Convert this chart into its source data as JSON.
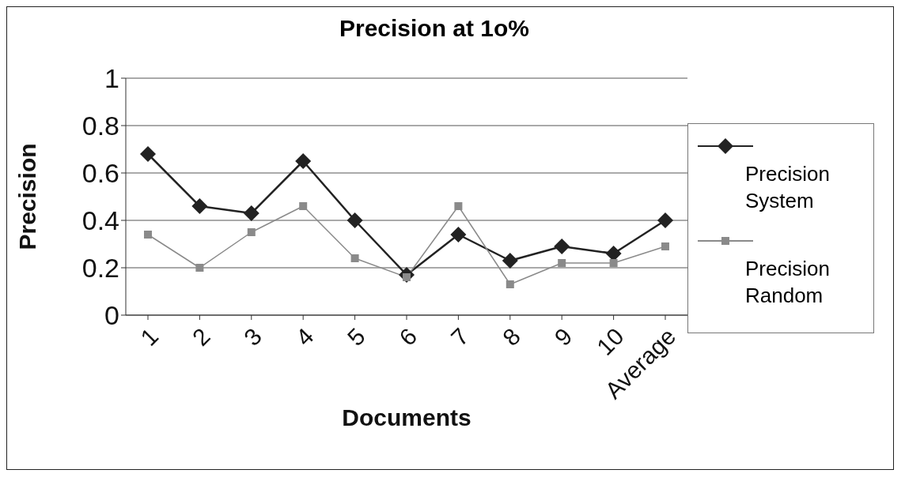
{
  "chart_data": {
    "type": "line",
    "title": "Precision at 1o%",
    "xlabel": "Documents",
    "ylabel": "Precision",
    "categories": [
      "1",
      "2",
      "3",
      "4",
      "5",
      "6",
      "7",
      "8",
      "9",
      "10",
      "Average"
    ],
    "series": [
      {
        "name": "Precision System",
        "color": "#222222",
        "marker": "diamond",
        "values": [
          0.68,
          0.46,
          0.43,
          0.65,
          0.4,
          0.17,
          0.34,
          0.23,
          0.29,
          0.26,
          0.4
        ]
      },
      {
        "name": "Precision Random",
        "color": "#8a8a8a",
        "marker": "square",
        "values": [
          0.34,
          0.2,
          0.35,
          0.46,
          0.24,
          0.16,
          0.46,
          0.13,
          0.22,
          0.22,
          0.29
        ]
      }
    ],
    "ylim": [
      0,
      1
    ],
    "yticks": [
      0,
      0.2,
      0.4,
      0.6,
      0.8,
      1
    ],
    "grid": "y",
    "legend": "right"
  }
}
